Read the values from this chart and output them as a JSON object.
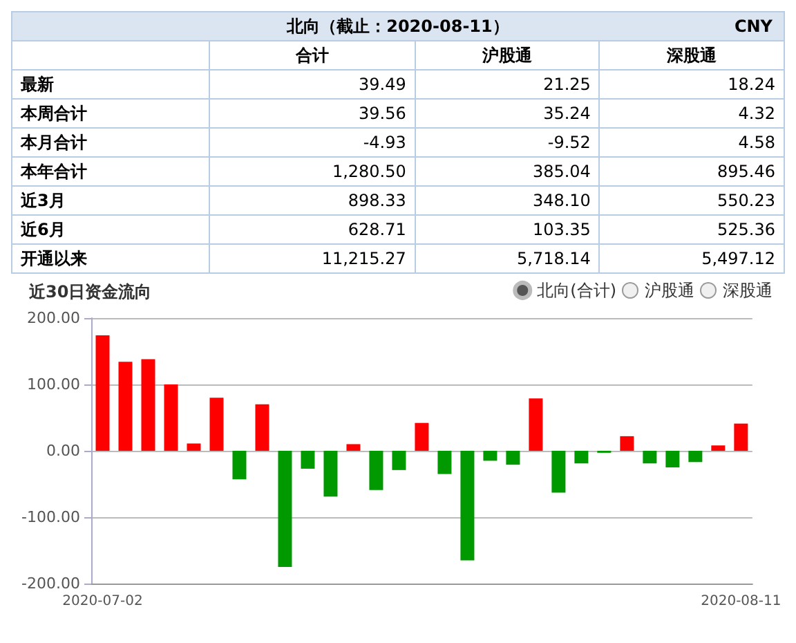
{
  "chart_data": [
    {
      "type": "other",
      "title": "北向（截止：2020-08-11）",
      "annotations": [
        "CNY"
      ],
      "categories": [
        "最新",
        "本周合计",
        "本月合计",
        "本年合计",
        "近3月",
        "近6月",
        "开通以来"
      ],
      "series": [
        {
          "name": "合计",
          "values": [
            39.49,
            39.56,
            -4.93,
            1280.5,
            898.33,
            628.71,
            11215.27
          ],
          "value_labels": [
            "39.49",
            "39.56",
            "-4.93",
            "1,280.50",
            "898.33",
            "628.71",
            "11,215.27"
          ]
        },
        {
          "name": "沪股通",
          "values": [
            21.25,
            35.24,
            -9.52,
            385.04,
            348.1,
            103.35,
            5718.14
          ],
          "value_labels": [
            "21.25",
            "35.24",
            "-9.52",
            "385.04",
            "348.10",
            "103.35",
            "5,718.14"
          ]
        },
        {
          "name": "深股通",
          "values": [
            18.24,
            4.32,
            4.58,
            895.46,
            550.23,
            525.36,
            5497.12
          ],
          "value_labels": [
            "18.24",
            "4.32",
            "4.58",
            "895.46",
            "550.23",
            "525.36",
            "5,497.12"
          ]
        }
      ]
    },
    {
      "type": "bar",
      "title": "近30日资金流向",
      "categories": [
        "2020-07-02",
        null,
        null,
        null,
        null,
        null,
        null,
        null,
        null,
        null,
        null,
        null,
        null,
        null,
        null,
        null,
        null,
        null,
        null,
        null,
        null,
        null,
        null,
        null,
        null,
        null,
        null,
        null,
        "2020-08-11"
      ],
      "series": [
        {
          "name": "北向(合计)",
          "values": [
            174,
            134,
            138,
            100,
            11,
            80,
            -43,
            70,
            -175,
            -27,
            -69,
            10,
            -59,
            -29,
            42,
            -35,
            -165,
            -15,
            -21,
            79,
            -63,
            -19,
            -3,
            22,
            -19,
            -25,
            -17,
            8,
            41
          ],
          "colors": [
            "#ff0000",
            "#ff0000",
            "#ff0000",
            "#ff0000",
            "#ff0000",
            "#ff0000",
            "#009900",
            "#ff0000",
            "#009900",
            "#009900",
            "#009900",
            "#ff0000",
            "#009900",
            "#009900",
            "#ff0000",
            "#009900",
            "#009900",
            "#009900",
            "#009900",
            "#ff0000",
            "#009900",
            "#009900",
            "#009900",
            "#ff0000",
            "#009900",
            "#009900",
            "#009900",
            "#ff0000",
            "#ff0000"
          ]
        },
        {
          "name": "沪股通",
          "values": [
            null,
            null,
            null,
            null,
            null,
            null,
            null,
            null,
            null,
            null,
            null,
            null,
            null,
            null,
            null,
            null,
            null,
            null,
            null,
            null,
            null,
            null,
            null,
            null,
            null,
            null,
            null,
            null,
            null
          ]
        },
        {
          "name": "深股通",
          "values": [
            null,
            null,
            null,
            null,
            null,
            null,
            null,
            null,
            null,
            null,
            null,
            null,
            null,
            null,
            null,
            null,
            null,
            null,
            null,
            null,
            null,
            null,
            null,
            null,
            null,
            null,
            null,
            null,
            null
          ]
        }
      ],
      "ylim": [
        -200,
        200
      ],
      "yticks": [
        {
          "value": -200,
          "label": "-200.00"
        },
        {
          "value": -100,
          "label": "-100.00"
        },
        {
          "value": 0,
          "label": "0.00"
        },
        {
          "value": 100,
          "label": "100.00"
        },
        {
          "value": 200,
          "label": "200.00"
        }
      ],
      "grid": "y",
      "legend": "top right"
    }
  ]
}
